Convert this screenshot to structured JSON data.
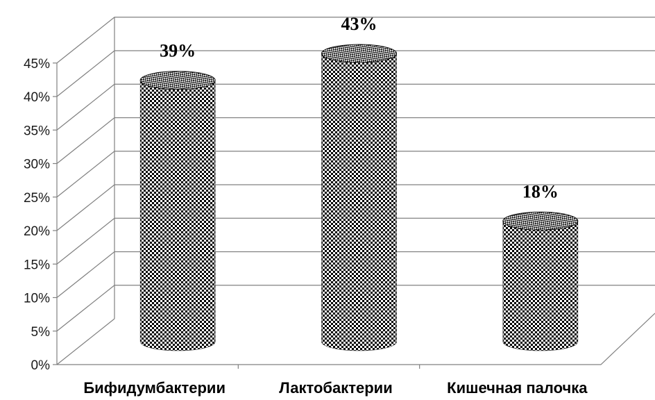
{
  "chart_data": {
    "type": "bar",
    "style": "3d-cylinder",
    "categories": [
      "Бифидумбактерии",
      "Лактобактерии",
      "Кишечная палочка"
    ],
    "values": [
      39,
      43,
      18
    ],
    "data_labels": [
      "39%",
      "43%",
      "18%"
    ],
    "ylim": [
      0,
      45
    ],
    "yticks": [
      0,
      5,
      10,
      15,
      20,
      25,
      30,
      35,
      40,
      45
    ],
    "ytick_labels": [
      "0%",
      "5%",
      "10%",
      "15%",
      "20%",
      "25%",
      "30%",
      "35%",
      "40%",
      "45%"
    ],
    "grid": true,
    "legend": "none",
    "colors": {
      "gridline": "#808080",
      "bar_dark": "#000000",
      "bar_light": "#ffffff"
    }
  }
}
